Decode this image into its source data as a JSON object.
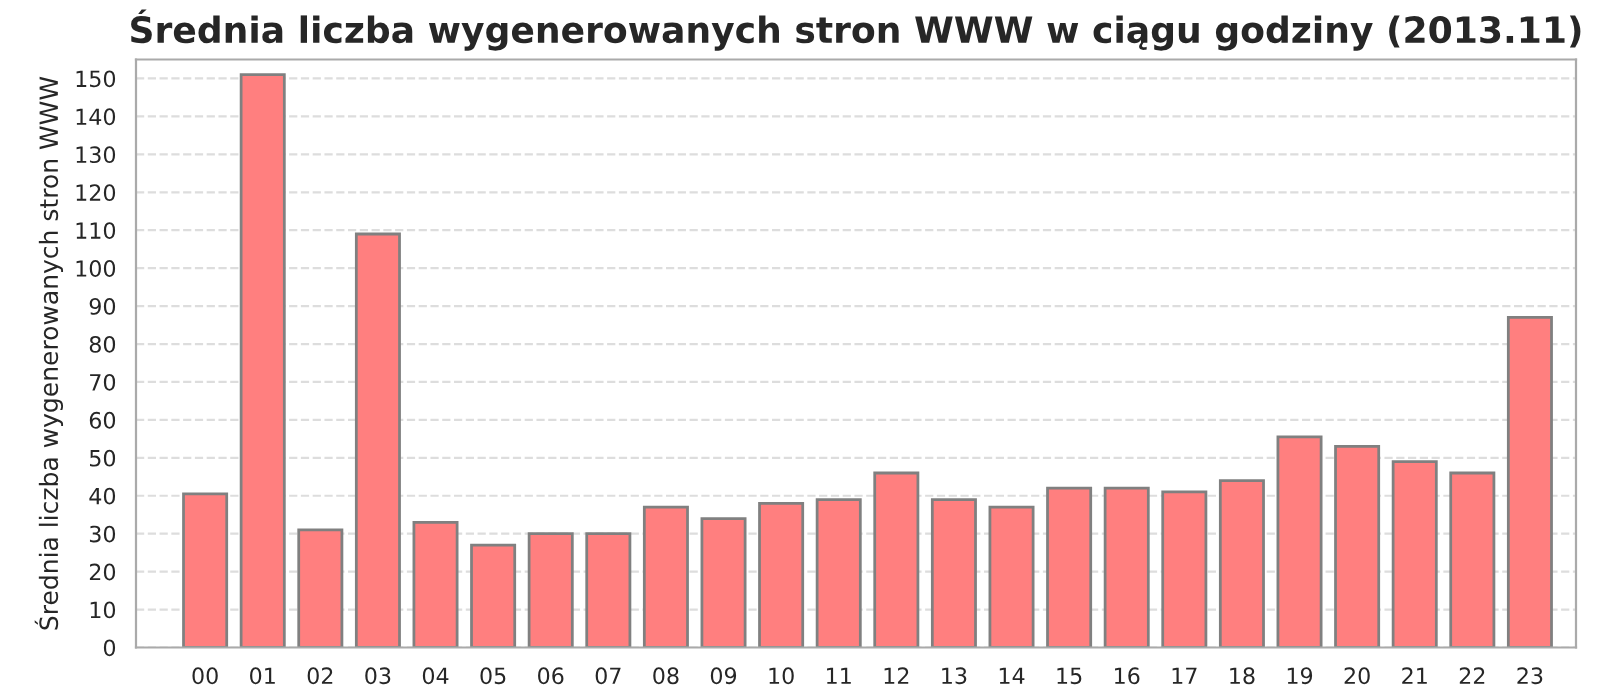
{
  "chart_data": {
    "type": "bar",
    "title": "Średnia liczba wygenerowanych stron WWW w ciągu godziny (2013.11)",
    "ylabel": "Średnia liczba wygenerowanych stron WWW",
    "categories": [
      "00",
      "01",
      "02",
      "03",
      "04",
      "05",
      "06",
      "07",
      "08",
      "09",
      "10",
      "11",
      "12",
      "13",
      "14",
      "15",
      "16",
      "17",
      "18",
      "19",
      "20",
      "21",
      "22",
      "23"
    ],
    "values": [
      40.5,
      151,
      31,
      109,
      33,
      27,
      30,
      30,
      37,
      34,
      38,
      39,
      46,
      39,
      37,
      42,
      42,
      41,
      44,
      55.5,
      53,
      49,
      46,
      87
    ],
    "color": "#ff7f7f",
    "ylim": [
      0,
      155
    ],
    "yticks": [
      0,
      10,
      20,
      30,
      40,
      50,
      60,
      70,
      80,
      90,
      100,
      110,
      120,
      130,
      140,
      150
    ],
    "grid": "y",
    "legend": false
  }
}
